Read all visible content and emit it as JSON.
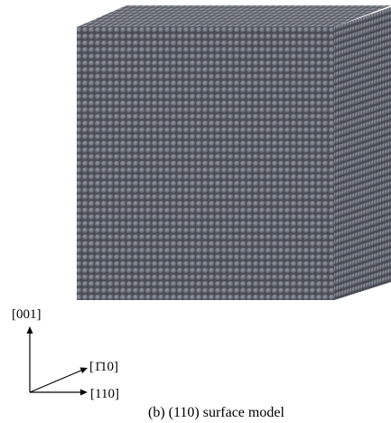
{
  "labels": {
    "z_axis": "[001]",
    "y_axis": "[1̄10]",
    "x_axis": "[110]"
  },
  "caption": "(b) (110) surface model"
}
